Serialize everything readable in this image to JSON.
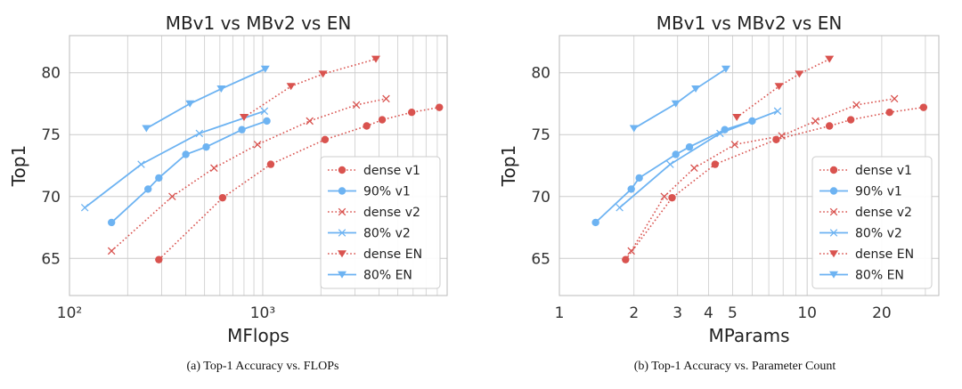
{
  "colors": {
    "dense": "#d9534f",
    "sparse": "#6db3f2",
    "grid": "#cccccc",
    "axis": "#333333"
  },
  "captions": {
    "a": "(a) Top-1 Accuracy vs. FLOPs",
    "b": "(b) Top-1 Accuracy vs. Parameter Count"
  },
  "chart_data": [
    {
      "type": "line",
      "title": "MBv1 vs MBv2 vs EN",
      "xlabel": "MFlops",
      "ylabel": "Top1",
      "xscale": "log",
      "xlim": [
        100,
        9000
      ],
      "ylim": [
        62,
        83
      ],
      "yticks": [
        65,
        70,
        75,
        80
      ],
      "xticks": [
        {
          "v": 100,
          "label": "10²"
        },
        {
          "v": 1000,
          "label": "10³"
        }
      ],
      "grid": true,
      "legend": "lower-right",
      "series": [
        {
          "name": "dense v1",
          "color": "#d9534f",
          "style": "dotted",
          "marker": "circle",
          "x": [
            290,
            620,
            1100,
            2100,
            3450,
            4150,
            5900,
            8200
          ],
          "y": [
            64.9,
            69.9,
            72.6,
            74.6,
            75.7,
            76.2,
            76.8,
            77.2
          ]
        },
        {
          "name": "90% v1",
          "color": "#6db3f2",
          "style": "solid",
          "marker": "circle",
          "x": [
            165,
            255,
            290,
            400,
            510,
            780,
            1050
          ],
          "y": [
            67.9,
            70.6,
            71.5,
            73.4,
            74.0,
            75.4,
            76.1
          ]
        },
        {
          "name": "dense v2",
          "color": "#d9534f",
          "style": "dotted",
          "marker": "x",
          "x": [
            165,
            340,
            560,
            940,
            1750,
            3050,
            4350
          ],
          "y": [
            65.6,
            70.0,
            72.3,
            74.2,
            76.1,
            77.4,
            77.9
          ]
        },
        {
          "name": "80% v2",
          "color": "#6db3f2",
          "style": "solid",
          "marker": "x",
          "x": [
            120,
            235,
            470,
            1020
          ],
          "y": [
            69.1,
            72.6,
            75.1,
            76.9
          ]
        },
        {
          "name": "dense EN",
          "color": "#d9534f",
          "style": "dotted",
          "marker": "triangle-down",
          "x": [
            800,
            1400,
            2050,
            3850
          ],
          "y": [
            76.4,
            78.9,
            79.9,
            81.1
          ]
        },
        {
          "name": "80% EN",
          "color": "#6db3f2",
          "style": "solid",
          "marker": "triangle-down",
          "x": [
            250,
            420,
            610,
            1030
          ],
          "y": [
            75.5,
            77.5,
            78.7,
            80.3
          ]
        }
      ]
    },
    {
      "type": "line",
      "title": "MBv1 vs MBv2 vs EN",
      "xlabel": "MParams",
      "ylabel": "Top1",
      "xscale": "log",
      "xlim": [
        1,
        34
      ],
      "ylim": [
        62,
        83
      ],
      "yticks": [
        65,
        70,
        75,
        80
      ],
      "xticks": [
        {
          "v": 1,
          "label": "1"
        },
        {
          "v": 2,
          "label": "2"
        },
        {
          "v": 3,
          "label": "3"
        },
        {
          "v": 4,
          "label": "4"
        },
        {
          "v": 5,
          "label": "5"
        },
        {
          "v": 10,
          "label": "10"
        },
        {
          "v": 20,
          "label": "20"
        }
      ],
      "grid": true,
      "legend": "lower-right",
      "series": [
        {
          "name": "dense v1",
          "color": "#d9534f",
          "style": "dotted",
          "marker": "circle",
          "x": [
            1.85,
            2.85,
            4.25,
            7.5,
            12.3,
            15.0,
            21.5,
            29.5
          ],
          "y": [
            64.9,
            69.9,
            72.6,
            74.6,
            75.7,
            76.2,
            76.8,
            77.2
          ]
        },
        {
          "name": "90% v1",
          "color": "#6db3f2",
          "style": "solid",
          "marker": "circle",
          "x": [
            1.4,
            1.95,
            2.1,
            2.95,
            3.35,
            4.65,
            6.0
          ],
          "y": [
            67.9,
            70.6,
            71.5,
            73.4,
            74.0,
            75.4,
            76.1
          ]
        },
        {
          "name": "dense v2",
          "color": "#d9534f",
          "style": "dotted",
          "marker": "x",
          "x": [
            1.95,
            2.65,
            3.5,
            5.1,
            7.9,
            10.8,
            15.8,
            22.5
          ],
          "y": [
            65.6,
            70.0,
            72.3,
            74.2,
            74.9,
            76.1,
            77.4,
            77.9
          ]
        },
        {
          "name": "80% v2",
          "color": "#6db3f2",
          "style": "solid",
          "marker": "x",
          "x": [
            1.75,
            2.8,
            4.45,
            7.6
          ],
          "y": [
            69.1,
            72.6,
            75.1,
            76.9
          ]
        },
        {
          "name": "dense EN",
          "color": "#d9534f",
          "style": "dotted",
          "marker": "triangle-down",
          "x": [
            5.2,
            7.7,
            9.3,
            12.3
          ],
          "y": [
            76.4,
            78.9,
            79.9,
            81.1
          ]
        },
        {
          "name": "80% EN",
          "color": "#6db3f2",
          "style": "solid",
          "marker": "triangle-down",
          "x": [
            2.0,
            2.95,
            3.55,
            4.7
          ],
          "y": [
            75.5,
            77.5,
            78.7,
            80.3
          ]
        }
      ]
    }
  ]
}
